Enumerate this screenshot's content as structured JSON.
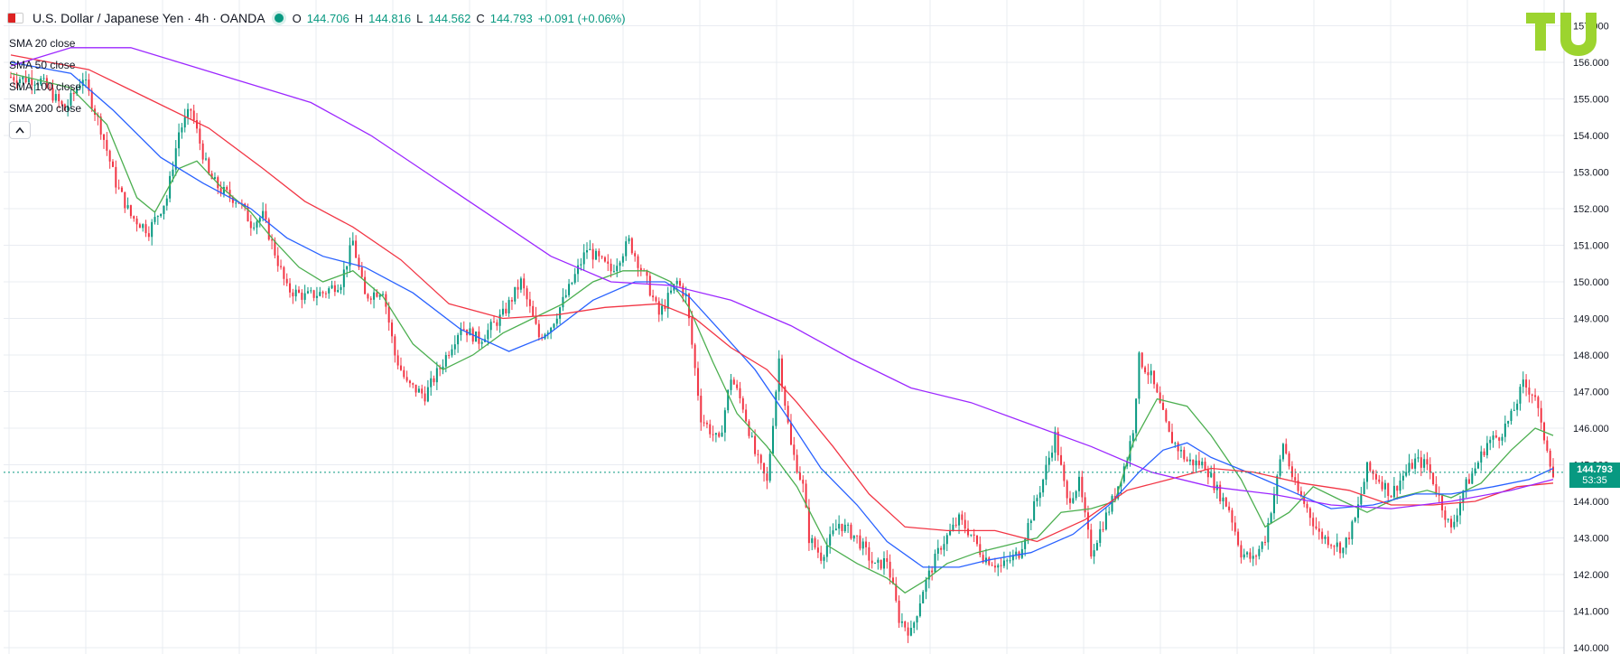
{
  "header": {
    "symbol_title": "U.S. Dollar / Japanese Yen · 4h · OANDA",
    "open_label": "O",
    "open": "144.706",
    "high_label": "H",
    "high": "144.816",
    "low_label": "L",
    "low": "144.562",
    "close_label": "C",
    "close": "144.793",
    "change": "+0.091 (+0.06%)"
  },
  "legend": [
    "SMA 20 close",
    "SMA 50 close",
    "SMA 100 close",
    "SMA 200 close"
  ],
  "last_price": {
    "price": "144.793",
    "countdown": "53:35"
  },
  "colors": {
    "up": "#089981",
    "down": "#f23645",
    "sma20": "#4caf50",
    "sma50": "#2962ff",
    "sma100": "#f23645",
    "sma200": "#9c27ff",
    "grid": "#e9ecf2",
    "axis_text": "#131722",
    "logo": "#9cd42f"
  },
  "chart_data": {
    "type": "candlestick",
    "ylim": [
      140,
      157
    ],
    "y_ticks": [
      "140.000",
      "141.000",
      "142.000",
      "143.000",
      "144.000",
      "145.000",
      "146.000",
      "147.000",
      "148.000",
      "149.000",
      "150.000",
      "151.000",
      "152.000",
      "153.000",
      "154.000",
      "155.000",
      "156.000",
      "157.000"
    ],
    "close_path": [
      [
        0,
        155.6
      ],
      [
        10,
        155.5
      ],
      [
        18,
        154.7
      ],
      [
        24,
        155.6
      ],
      [
        30,
        154.2
      ],
      [
        35,
        152.7
      ],
      [
        40,
        151.8
      ],
      [
        46,
        151.4
      ],
      [
        52,
        152.3
      ],
      [
        56,
        154.1
      ],
      [
        60,
        154.7
      ],
      [
        66,
        152.9
      ],
      [
        70,
        152.5
      ],
      [
        76,
        152.2
      ],
      [
        80,
        151.6
      ],
      [
        84,
        151.8
      ],
      [
        88,
        150.8
      ],
      [
        92,
        149.8
      ],
      [
        98,
        149.6
      ],
      [
        104,
        149.7
      ],
      [
        110,
        150.0
      ],
      [
        114,
        151.1
      ],
      [
        118,
        149.6
      ],
      [
        124,
        149.8
      ],
      [
        128,
        148.0
      ],
      [
        132,
        147.2
      ],
      [
        138,
        146.9
      ],
      [
        144,
        147.8
      ],
      [
        150,
        148.8
      ],
      [
        156,
        148.4
      ],
      [
        164,
        149.1
      ],
      [
        170,
        150.0
      ],
      [
        176,
        148.5
      ],
      [
        180,
        148.8
      ],
      [
        186,
        149.8
      ],
      [
        192,
        150.9
      ],
      [
        200,
        150.3
      ],
      [
        206,
        151.1
      ],
      [
        212,
        150.0
      ],
      [
        216,
        149.1
      ],
      [
        222,
        150.0
      ],
      [
        225,
        149.6
      ],
      [
        230,
        146.3
      ],
      [
        236,
        145.6
      ],
      [
        240,
        147.4
      ],
      [
        244,
        146.6
      ],
      [
        248,
        145.3
      ],
      [
        252,
        144.5
      ],
      [
        256,
        147.9
      ],
      [
        260,
        145.5
      ],
      [
        264,
        144.4
      ],
      [
        266,
        143.0
      ],
      [
        270,
        142.5
      ],
      [
        276,
        143.4
      ],
      [
        282,
        143.0
      ],
      [
        288,
        142.2
      ],
      [
        292,
        142.4
      ],
      [
        296,
        140.8
      ],
      [
        300,
        140.4
      ],
      [
        304,
        141.6
      ],
      [
        310,
        142.8
      ],
      [
        316,
        143.5
      ],
      [
        320,
        143.1
      ],
      [
        324,
        142.5
      ],
      [
        330,
        142.2
      ],
      [
        336,
        142.6
      ],
      [
        340,
        143.6
      ],
      [
        344,
        144.6
      ],
      [
        348,
        145.8
      ],
      [
        352,
        144.0
      ],
      [
        356,
        144.5
      ],
      [
        360,
        142.6
      ],
      [
        364,
        143.4
      ],
      [
        368,
        144.2
      ],
      [
        372,
        145.2
      ],
      [
        374,
        146.0
      ],
      [
        376,
        147.9
      ],
      [
        380,
        147.4
      ],
      [
        386,
        145.8
      ],
      [
        392,
        145.1
      ],
      [
        398,
        145.0
      ],
      [
        402,
        144.3
      ],
      [
        406,
        143.8
      ],
      [
        410,
        142.6
      ],
      [
        414,
        142.4
      ],
      [
        418,
        143.0
      ],
      [
        422,
        144.6
      ],
      [
        424,
        145.6
      ],
      [
        428,
        144.4
      ],
      [
        432,
        143.8
      ],
      [
        436,
        143.1
      ],
      [
        440,
        142.9
      ],
      [
        444,
        142.7
      ],
      [
        448,
        143.5
      ],
      [
        452,
        144.9
      ],
      [
        456,
        144.6
      ],
      [
        460,
        144.2
      ],
      [
        464,
        144.7
      ],
      [
        468,
        145.1
      ],
      [
        472,
        145.0
      ],
      [
        476,
        144.1
      ],
      [
        480,
        143.2
      ],
      [
        484,
        144.3
      ],
      [
        488,
        144.9
      ],
      [
        492,
        145.6
      ],
      [
        496,
        145.8
      ],
      [
        500,
        146.3
      ],
      [
        504,
        147.2
      ],
      [
        508,
        146.9
      ],
      [
        510,
        146.0
      ],
      [
        512,
        145.5
      ],
      [
        514,
        144.7
      ]
    ],
    "sma20": [
      [
        0,
        155.7
      ],
      [
        20,
        155.3
      ],
      [
        32,
        154.3
      ],
      [
        42,
        152.3
      ],
      [
        48,
        151.9
      ],
      [
        56,
        153.1
      ],
      [
        62,
        153.3
      ],
      [
        70,
        152.6
      ],
      [
        80,
        151.9
      ],
      [
        88,
        151.1
      ],
      [
        96,
        150.4
      ],
      [
        104,
        150.0
      ],
      [
        114,
        150.3
      ],
      [
        124,
        149.6
      ],
      [
        134,
        148.3
      ],
      [
        144,
        147.6
      ],
      [
        154,
        148.0
      ],
      [
        164,
        148.6
      ],
      [
        174,
        149.0
      ],
      [
        184,
        149.4
      ],
      [
        194,
        150.0
      ],
      [
        204,
        150.3
      ],
      [
        212,
        150.3
      ],
      [
        220,
        150.0
      ],
      [
        226,
        149.3
      ],
      [
        234,
        147.8
      ],
      [
        242,
        146.4
      ],
      [
        252,
        145.5
      ],
      [
        262,
        144.4
      ],
      [
        272,
        142.8
      ],
      [
        282,
        142.3
      ],
      [
        292,
        141.9
      ],
      [
        298,
        141.5
      ],
      [
        304,
        141.8
      ],
      [
        312,
        142.3
      ],
      [
        322,
        142.6
      ],
      [
        332,
        142.8
      ],
      [
        342,
        143.0
      ],
      [
        350,
        143.7
      ],
      [
        360,
        143.8
      ],
      [
        368,
        144.0
      ],
      [
        374,
        145.6
      ],
      [
        382,
        146.8
      ],
      [
        392,
        146.6
      ],
      [
        400,
        145.8
      ],
      [
        410,
        144.6
      ],
      [
        418,
        143.3
      ],
      [
        426,
        143.7
      ],
      [
        434,
        144.4
      ],
      [
        444,
        144.0
      ],
      [
        452,
        143.7
      ],
      [
        462,
        144.1
      ],
      [
        472,
        144.3
      ],
      [
        480,
        144.1
      ],
      [
        490,
        144.5
      ],
      [
        500,
        145.4
      ],
      [
        508,
        146.0
      ],
      [
        514,
        145.8
      ]
    ],
    "sma50": [
      [
        0,
        156.0
      ],
      [
        20,
        155.7
      ],
      [
        34,
        154.7
      ],
      [
        50,
        153.4
      ],
      [
        64,
        152.7
      ],
      [
        80,
        152.0
      ],
      [
        92,
        151.2
      ],
      [
        104,
        150.7
      ],
      [
        118,
        150.4
      ],
      [
        134,
        149.7
      ],
      [
        150,
        148.7
      ],
      [
        166,
        148.1
      ],
      [
        178,
        148.5
      ],
      [
        194,
        149.5
      ],
      [
        208,
        150.0
      ],
      [
        218,
        150.0
      ],
      [
        226,
        149.6
      ],
      [
        236,
        148.7
      ],
      [
        248,
        147.6
      ],
      [
        258,
        146.4
      ],
      [
        270,
        144.9
      ],
      [
        282,
        143.9
      ],
      [
        292,
        142.9
      ],
      [
        304,
        142.2
      ],
      [
        316,
        142.2
      ],
      [
        326,
        142.4
      ],
      [
        340,
        142.6
      ],
      [
        354,
        143.1
      ],
      [
        366,
        143.9
      ],
      [
        376,
        144.8
      ],
      [
        384,
        145.4
      ],
      [
        392,
        145.6
      ],
      [
        400,
        145.2
      ],
      [
        412,
        144.8
      ],
      [
        426,
        144.3
      ],
      [
        440,
        143.8
      ],
      [
        454,
        143.9
      ],
      [
        468,
        144.2
      ],
      [
        480,
        144.2
      ],
      [
        494,
        144.4
      ],
      [
        506,
        144.6
      ],
      [
        514,
        144.9
      ]
    ],
    "sma100": [
      [
        0,
        156.2
      ],
      [
        26,
        155.8
      ],
      [
        46,
        155.0
      ],
      [
        66,
        154.2
      ],
      [
        84,
        153.1
      ],
      [
        98,
        152.2
      ],
      [
        114,
        151.5
      ],
      [
        130,
        150.6
      ],
      [
        146,
        149.4
      ],
      [
        164,
        149.0
      ],
      [
        182,
        149.1
      ],
      [
        198,
        149.3
      ],
      [
        216,
        149.4
      ],
      [
        228,
        149.0
      ],
      [
        240,
        148.2
      ],
      [
        252,
        147.6
      ],
      [
        262,
        146.7
      ],
      [
        274,
        145.5
      ],
      [
        286,
        144.2
      ],
      [
        298,
        143.3
      ],
      [
        312,
        143.2
      ],
      [
        328,
        143.2
      ],
      [
        342,
        142.9
      ],
      [
        358,
        143.5
      ],
      [
        372,
        144.3
      ],
      [
        386,
        144.6
      ],
      [
        400,
        144.9
      ],
      [
        414,
        144.8
      ],
      [
        430,
        144.5
      ],
      [
        446,
        144.3
      ],
      [
        460,
        143.9
      ],
      [
        474,
        143.9
      ],
      [
        488,
        144.0
      ],
      [
        502,
        144.4
      ],
      [
        514,
        144.5
      ]
    ],
    "sma200": [
      [
        0,
        155.9
      ],
      [
        20,
        156.4
      ],
      [
        40,
        156.4
      ],
      [
        60,
        155.9
      ],
      [
        80,
        155.4
      ],
      [
        100,
        154.9
      ],
      [
        120,
        154.0
      ],
      [
        140,
        152.9
      ],
      [
        160,
        151.8
      ],
      [
        180,
        150.7
      ],
      [
        200,
        150.0
      ],
      [
        220,
        149.9
      ],
      [
        240,
        149.5
      ],
      [
        260,
        148.8
      ],
      [
        280,
        147.9
      ],
      [
        300,
        147.1
      ],
      [
        320,
        146.7
      ],
      [
        340,
        146.1
      ],
      [
        360,
        145.5
      ],
      [
        380,
        144.8
      ],
      [
        400,
        144.4
      ],
      [
        420,
        144.2
      ],
      [
        440,
        143.9
      ],
      [
        460,
        143.8
      ],
      [
        480,
        144.0
      ],
      [
        500,
        144.3
      ],
      [
        514,
        144.6
      ]
    ]
  }
}
